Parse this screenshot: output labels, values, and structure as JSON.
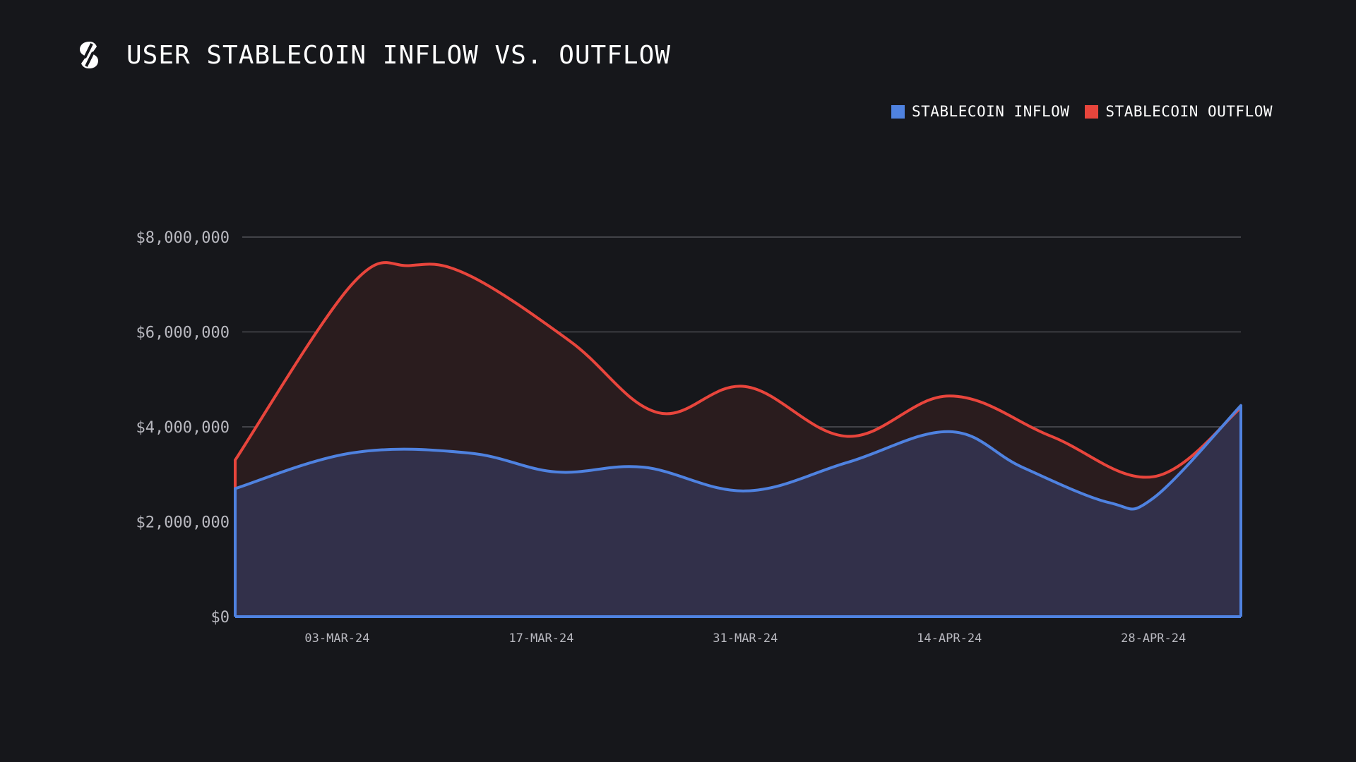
{
  "header": {
    "logo_icon": "stablecoin-s-icon",
    "title": "USER STABLECOIN INFLOW VS. OUTFLOW"
  },
  "colors": {
    "background": "#16171b",
    "inflow": "#4f82e0",
    "outflow": "#e8453c",
    "inflow_fill": "#32304a",
    "outflow_fill": "#2a1c1e",
    "grid": "#6e6f75",
    "tick_text": "#b9b9c0"
  },
  "chart_data": {
    "type": "area",
    "title": "USER STABLECOIN INFLOW VS. OUTFLOW",
    "xlabel": "",
    "ylabel": "",
    "ylim": [
      0,
      8000000
    ],
    "y_ticks": [
      {
        "value": 0,
        "label": "$0"
      },
      {
        "value": 2000000,
        "label": "$2,000,000"
      },
      {
        "value": 4000000,
        "label": "$4,000,000"
      },
      {
        "value": 6000000,
        "label": "$6,000,000"
      },
      {
        "value": 8000000,
        "label": "$8,000,000"
      }
    ],
    "x_start": "2024-02-25",
    "x_end": "2024-05-04",
    "x_ticks": [
      {
        "date": "2024-03-03",
        "label": "03-MAR-24"
      },
      {
        "date": "2024-03-17",
        "label": "17-MAR-24"
      },
      {
        "date": "2024-03-31",
        "label": "31-MAR-24"
      },
      {
        "date": "2024-04-14",
        "label": "14-APR-24"
      },
      {
        "date": "2024-04-28",
        "label": "28-APR-24"
      }
    ],
    "grid": true,
    "legend_position": "top-right",
    "series": [
      {
        "name": "STABLECOIN OUTFLOW",
        "color_key": "outflow",
        "points": [
          {
            "date": "2024-02-25",
            "value": 3300000
          },
          {
            "date": "2024-03-04",
            "value": 7000000
          },
          {
            "date": "2024-03-08",
            "value": 7400000
          },
          {
            "date": "2024-03-12",
            "value": 7200000
          },
          {
            "date": "2024-03-19",
            "value": 5800000
          },
          {
            "date": "2024-03-25",
            "value": 4300000
          },
          {
            "date": "2024-03-31",
            "value": 4850000
          },
          {
            "date": "2024-04-07",
            "value": 3800000
          },
          {
            "date": "2024-04-14",
            "value": 4650000
          },
          {
            "date": "2024-04-21",
            "value": 3800000
          },
          {
            "date": "2024-04-28",
            "value": 2950000
          },
          {
            "date": "2024-05-04",
            "value": 4400000
          }
        ]
      },
      {
        "name": "STABLECOIN INFLOW",
        "color_key": "inflow",
        "points": [
          {
            "date": "2024-02-25",
            "value": 2700000
          },
          {
            "date": "2024-03-04",
            "value": 3450000
          },
          {
            "date": "2024-03-12",
            "value": 3450000
          },
          {
            "date": "2024-03-18",
            "value": 3050000
          },
          {
            "date": "2024-03-24",
            "value": 3150000
          },
          {
            "date": "2024-03-31",
            "value": 2650000
          },
          {
            "date": "2024-04-07",
            "value": 3250000
          },
          {
            "date": "2024-04-14",
            "value": 3900000
          },
          {
            "date": "2024-04-19",
            "value": 3150000
          },
          {
            "date": "2024-04-25",
            "value": 2400000
          },
          {
            "date": "2024-04-28",
            "value": 2500000
          },
          {
            "date": "2024-05-04",
            "value": 4450000
          }
        ]
      }
    ]
  }
}
